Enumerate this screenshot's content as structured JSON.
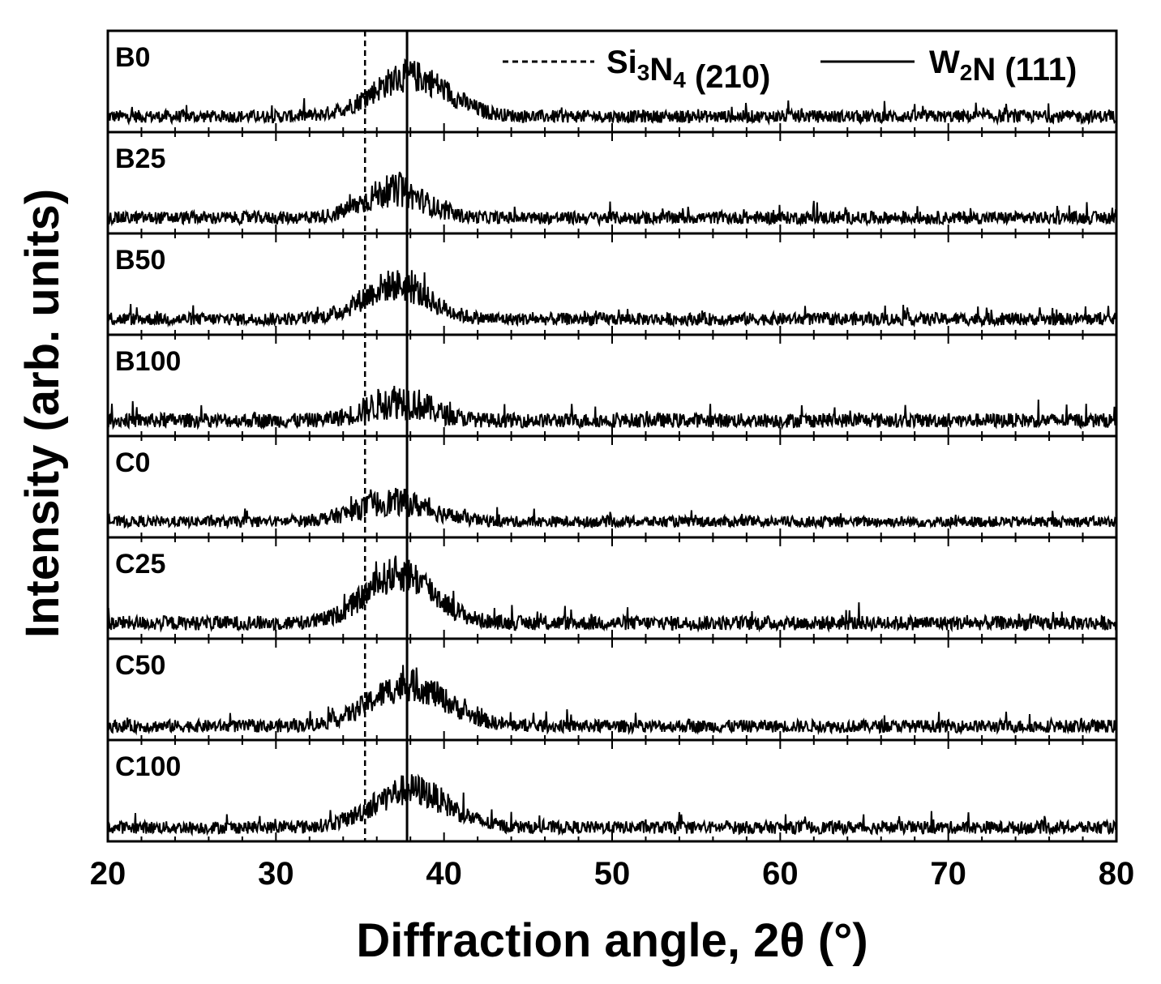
{
  "chart_data": {
    "type": "line",
    "xlabel": "Diffraction angle, 2θ (°)",
    "ylabel": "Intensity (arb. units)",
    "xlim": [
      20,
      80
    ],
    "x_ticks": [
      "20",
      "30",
      "40",
      "50",
      "60",
      "70",
      "80"
    ],
    "grid": false,
    "layout": "stacked panels, shared x-axis",
    "reference_lines": [
      {
        "name": "Si",
        "sub1": "3",
        "mid": "N",
        "sub2": "4",
        "suffix": " (210)",
        "x": 35.3,
        "style": "dashed"
      },
      {
        "name": "W",
        "sub1": "2",
        "mid": "N",
        "sub2": "",
        "suffix": " (111)",
        "x": 37.8,
        "style": "solid"
      }
    ],
    "legend_placement": "top-right",
    "series": [
      {
        "name": "B0",
        "peak_center": 38.0,
        "peak_height": 0.45,
        "peak_width": 2.2,
        "baseline": 0.12,
        "noise": 0.07
      },
      {
        "name": "B25",
        "peak_center": 37.0,
        "peak_height": 0.3,
        "peak_width": 1.8,
        "baseline": 0.12,
        "noise": 0.07
      },
      {
        "name": "B50",
        "peak_center": 37.1,
        "peak_height": 0.38,
        "peak_width": 1.9,
        "baseline": 0.12,
        "noise": 0.07
      },
      {
        "name": "B100",
        "peak_center": 37.3,
        "peak_height": 0.22,
        "peak_width": 1.8,
        "baseline": 0.12,
        "noise": 0.08
      },
      {
        "name": "C0",
        "peak_center": 37.0,
        "peak_height": 0.22,
        "peak_width": 2.2,
        "baseline": 0.12,
        "noise": 0.06
      },
      {
        "name": "C25",
        "peak_center": 37.4,
        "peak_height": 0.55,
        "peak_width": 2.0,
        "baseline": 0.12,
        "noise": 0.08
      },
      {
        "name": "C50",
        "peak_center": 37.9,
        "peak_height": 0.45,
        "peak_width": 2.3,
        "baseline": 0.1,
        "noise": 0.07
      },
      {
        "name": "C100",
        "peak_center": 38.0,
        "peak_height": 0.42,
        "peak_width": 2.2,
        "baseline": 0.1,
        "noise": 0.07
      }
    ]
  }
}
